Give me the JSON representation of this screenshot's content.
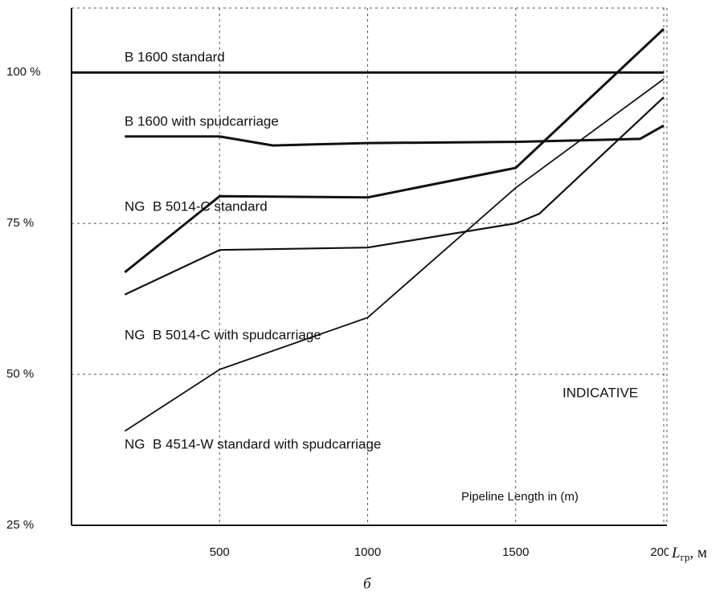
{
  "chart_data": {
    "type": "line",
    "series": [
      {
        "name": "B 1600 standard",
        "color": "#111111",
        "x": [
          0,
          2000
        ],
        "values": [
          100,
          100
        ]
      },
      {
        "name": "B 1600 with spudcarriage",
        "color": "#111111",
        "x": [
          180,
          500,
          680,
          1000,
          1500,
          1920,
          2000
        ],
        "values": [
          89.4,
          89.4,
          87.9,
          88.3,
          88.5,
          89,
          91.2
        ]
      },
      {
        "name": "NG  B 5014-C standard",
        "color": "#111111",
        "x": [
          180,
          500,
          1000,
          1500,
          2000
        ],
        "values": [
          66.9,
          79.5,
          79.3,
          84.2,
          107.2
        ]
      },
      {
        "name": "NG  B 5014-C with spudcarriage",
        "color": "#111111",
        "x": [
          180,
          500,
          1000,
          1500,
          1580,
          2000
        ],
        "values": [
          63.2,
          70.6,
          71,
          75,
          76.6,
          95.9
        ]
      },
      {
        "name": "NG  B 4514-W standard with spudcarriage",
        "color": "#111111",
        "x": [
          180,
          500,
          1000,
          1500,
          2000
        ],
        "values": [
          40.6,
          50.8,
          59.4,
          80.9,
          98.9
        ]
      }
    ],
    "xlim": [
      0,
      2000
    ],
    "xticks": [
      500,
      1000,
      1500,
      2000
    ],
    "ylim": [
      25,
      110
    ],
    "yticks": [
      {
        "value": 25,
        "label": "25 %"
      },
      {
        "value": 50,
        "label": "50 %"
      },
      {
        "value": 75,
        "label": "75 %"
      },
      {
        "value": 100,
        "label": "100 %"
      }
    ],
    "grid": true,
    "annotations": [
      "INDICATIVE",
      "Pipeline Length in (m)"
    ],
    "xlabel_symbol": "L",
    "xlabel_subscript": "гр",
    "xlabel_unit": ", м",
    "caption": "б"
  }
}
